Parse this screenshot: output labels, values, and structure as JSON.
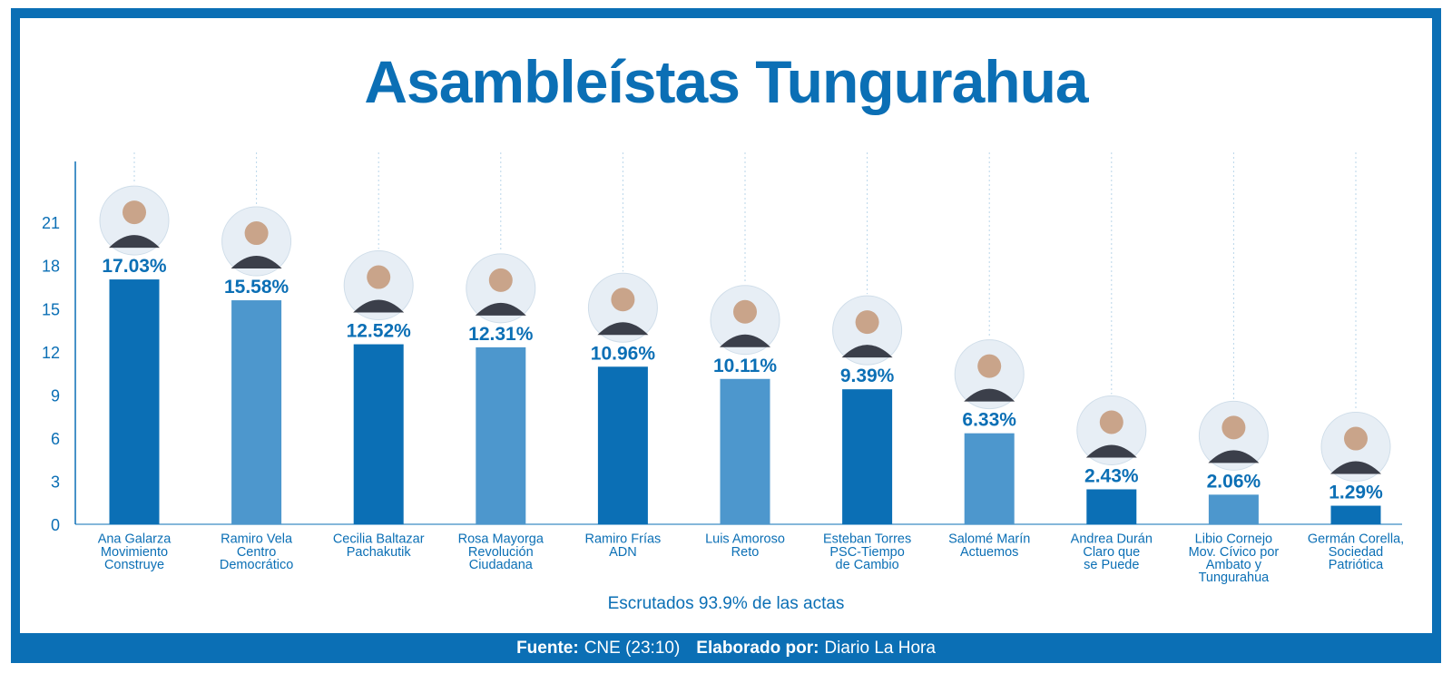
{
  "title": "Asambleístas Tungurahua",
  "footer": {
    "source_label": "Fuente:",
    "source_value": "CNE (23:10)",
    "author_label": "Elaborado por:",
    "author_value": "Diario La Hora"
  },
  "colors": {
    "dark": "#0b6fb5",
    "light": "#4d97cd",
    "text": "#0b6fb5"
  },
  "chart_data": {
    "type": "bar",
    "title": "Asambleístas Tungurahua",
    "note": "Escrutados 93.9% de las actas",
    "ylim": [
      0,
      25
    ],
    "yticks": [
      0,
      3,
      6,
      9,
      12,
      15,
      18,
      21
    ],
    "grid": false,
    "categories": [
      [
        "Ana Galarza",
        "Movimiento",
        "Construye"
      ],
      [
        "Ramiro Vela",
        "Centro",
        "Democrático"
      ],
      [
        "Cecilia Baltazar",
        "Pachakutik"
      ],
      [
        "Rosa Mayorga",
        "Revolución",
        "Ciudadana"
      ],
      [
        "Ramiro Frías",
        "ADN"
      ],
      [
        "Luis Amoroso",
        "Reto"
      ],
      [
        "Esteban Torres",
        "PSC-Tiempo",
        "de Cambio"
      ],
      [
        "Salomé Marín",
        "Actuemos"
      ],
      [
        "Andrea Durán",
        "Claro que",
        "se Puede"
      ],
      [
        "Libio Cornejo",
        "Mov. Cívico por",
        "Ambato y",
        "Tungurahua"
      ],
      [
        "Germán Corella,",
        "Sociedad",
        "Patriótica"
      ]
    ],
    "values": [
      17.03,
      15.58,
      12.52,
      12.31,
      10.96,
      10.11,
      9.39,
      6.33,
      2.43,
      2.06,
      1.29
    ],
    "labels": [
      "17.03%",
      "15.58%",
      "12.52%",
      "12.31%",
      "10.96%",
      "10.11%",
      "9.39%",
      "6.33%",
      "2.43%",
      "2.06%",
      "1.29%"
    ],
    "bar_shades": [
      "dark",
      "light",
      "dark",
      "light",
      "dark",
      "light",
      "dark",
      "light",
      "dark",
      "light",
      "dark"
    ]
  }
}
